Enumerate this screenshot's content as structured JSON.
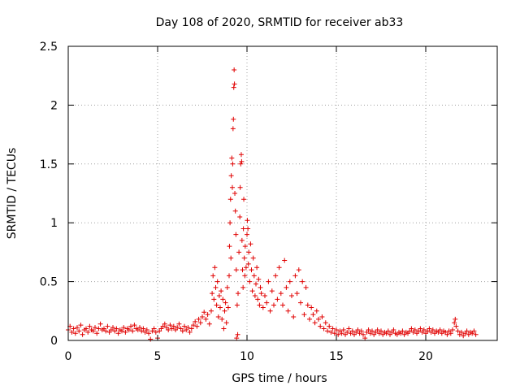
{
  "chart_data": {
    "type": "scatter",
    "title": "Day 108 of 2020, SRMTID for receiver ab33",
    "xlabel": "GPS time / hours",
    "ylabel": "SRMTID / TECUs",
    "xlim": [
      0,
      24
    ],
    "ylim": [
      0,
      2.5
    ],
    "xticks": [
      0,
      5,
      10,
      15,
      20
    ],
    "xtick_labels": [
      "0",
      "5",
      "10",
      "15",
      "20"
    ],
    "yticks": [
      0,
      0.5,
      1,
      1.5,
      2,
      2.5
    ],
    "ytick_labels": [
      "0",
      "0.5",
      "1",
      "1.5",
      "2",
      "2.5"
    ],
    "grid": true,
    "marker": "+",
    "color": "#e00000",
    "series": [
      {
        "name": "SRMTID",
        "points": [
          [
            0.0,
            0.09
          ],
          [
            0.1,
            0.12
          ],
          [
            0.2,
            0.07
          ],
          [
            0.3,
            0.1
          ],
          [
            0.4,
            0.06
          ],
          [
            0.5,
            0.11
          ],
          [
            0.6,
            0.08
          ],
          [
            0.7,
            0.13
          ],
          [
            0.8,
            0.05
          ],
          [
            0.9,
            0.09
          ],
          [
            1.0,
            0.1
          ],
          [
            1.1,
            0.07
          ],
          [
            1.2,
            0.12
          ],
          [
            1.3,
            0.09
          ],
          [
            1.4,
            0.08
          ],
          [
            1.5,
            0.11
          ],
          [
            1.6,
            0.06
          ],
          [
            1.7,
            0.1
          ],
          [
            1.8,
            0.14
          ],
          [
            1.9,
            0.09
          ],
          [
            2.0,
            0.1
          ],
          [
            2.1,
            0.08
          ],
          [
            2.2,
            0.12
          ],
          [
            2.3,
            0.07
          ],
          [
            2.4,
            0.09
          ],
          [
            2.5,
            0.11
          ],
          [
            2.6,
            0.08
          ],
          [
            2.7,
            0.1
          ],
          [
            2.8,
            0.06
          ],
          [
            2.9,
            0.09
          ],
          [
            3.0,
            0.08
          ],
          [
            3.1,
            0.11
          ],
          [
            3.2,
            0.07
          ],
          [
            3.3,
            0.1
          ],
          [
            3.4,
            0.09
          ],
          [
            3.5,
            0.12
          ],
          [
            3.6,
            0.08
          ],
          [
            3.7,
            0.13
          ],
          [
            3.8,
            0.1
          ],
          [
            3.9,
            0.09
          ],
          [
            4.0,
            0.11
          ],
          [
            4.1,
            0.08
          ],
          [
            4.2,
            0.1
          ],
          [
            4.3,
            0.07
          ],
          [
            4.4,
            0.09
          ],
          [
            4.5,
            0.06
          ],
          [
            4.6,
            0.01
          ],
          [
            4.7,
            0.08
          ],
          [
            4.8,
            0.1
          ],
          [
            4.9,
            0.07
          ],
          [
            5.0,
            0.02
          ],
          [
            5.1,
            0.08
          ],
          [
            5.2,
            0.1
          ],
          [
            5.3,
            0.12
          ],
          [
            5.4,
            0.14
          ],
          [
            5.5,
            0.11
          ],
          [
            5.6,
            0.09
          ],
          [
            5.7,
            0.13
          ],
          [
            5.8,
            0.1
          ],
          [
            5.9,
            0.12
          ],
          [
            6.0,
            0.09
          ],
          [
            6.1,
            0.11
          ],
          [
            6.2,
            0.14
          ],
          [
            6.3,
            0.1
          ],
          [
            6.4,
            0.08
          ],
          [
            6.5,
            0.12
          ],
          [
            6.6,
            0.09
          ],
          [
            6.7,
            0.11
          ],
          [
            6.8,
            0.07
          ],
          [
            6.9,
            0.1
          ],
          [
            7.0,
            0.13
          ],
          [
            7.1,
            0.16
          ],
          [
            7.2,
            0.12
          ],
          [
            7.3,
            0.18
          ],
          [
            7.4,
            0.15
          ],
          [
            7.5,
            0.2
          ],
          [
            7.6,
            0.24
          ],
          [
            7.7,
            0.18
          ],
          [
            7.8,
            0.22
          ],
          [
            7.9,
            0.14
          ],
          [
            8.0,
            0.25
          ],
          [
            8.05,
            0.4
          ],
          [
            8.1,
            0.55
          ],
          [
            8.15,
            0.35
          ],
          [
            8.2,
            0.62
          ],
          [
            8.25,
            0.45
          ],
          [
            8.3,
            0.3
          ],
          [
            8.35,
            0.5
          ],
          [
            8.4,
            0.2
          ],
          [
            8.45,
            0.38
          ],
          [
            8.5,
            0.28
          ],
          [
            8.55,
            0.42
          ],
          [
            8.6,
            0.18
          ],
          [
            8.65,
            0.35
          ],
          [
            8.7,
            0.1
          ],
          [
            8.75,
            0.25
          ],
          [
            8.8,
            0.32
          ],
          [
            8.85,
            0.15
          ],
          [
            8.9,
            0.45
          ],
          [
            8.95,
            0.28
          ],
          [
            9.0,
            0.55
          ],
          [
            9.02,
            0.8
          ],
          [
            9.05,
            1.0
          ],
          [
            9.08,
            1.2
          ],
          [
            9.1,
            0.7
          ],
          [
            9.12,
            1.4
          ],
          [
            9.15,
            1.55
          ],
          [
            9.18,
            1.3
          ],
          [
            9.2,
            1.5
          ],
          [
            9.22,
            1.8
          ],
          [
            9.24,
            1.88
          ],
          [
            9.26,
            2.15
          ],
          [
            9.28,
            2.3
          ],
          [
            9.3,
            2.18
          ],
          [
            9.32,
            1.25
          ],
          [
            9.35,
            1.1
          ],
          [
            9.38,
            0.9
          ],
          [
            9.4,
            0.6
          ],
          [
            9.42,
            0.02
          ],
          [
            9.45,
            0.3
          ],
          [
            9.48,
            0.05
          ],
          [
            9.5,
            0.4
          ],
          [
            9.55,
            0.75
          ],
          [
            9.6,
            1.05
          ],
          [
            9.62,
            1.3
          ],
          [
            9.65,
            1.5
          ],
          [
            9.68,
            1.58
          ],
          [
            9.7,
            1.52
          ],
          [
            9.72,
            0.85
          ],
          [
            9.75,
            0.6
          ],
          [
            9.78,
            0.45
          ],
          [
            9.8,
            0.95
          ],
          [
            9.82,
            1.2
          ],
          [
            9.85,
            0.7
          ],
          [
            9.88,
            0.55
          ],
          [
            9.9,
            0.8
          ],
          [
            9.95,
            0.62
          ],
          [
            10.0,
            0.9
          ],
          [
            10.02,
            1.02
          ],
          [
            10.05,
            0.95
          ],
          [
            10.08,
            0.65
          ],
          [
            10.1,
            0.75
          ],
          [
            10.15,
            0.5
          ],
          [
            10.2,
            0.82
          ],
          [
            10.25,
            0.6
          ],
          [
            10.3,
            0.42
          ],
          [
            10.35,
            0.7
          ],
          [
            10.4,
            0.55
          ],
          [
            10.45,
            0.38
          ],
          [
            10.5,
            0.48
          ],
          [
            10.55,
            0.62
          ],
          [
            10.6,
            0.35
          ],
          [
            10.65,
            0.52
          ],
          [
            10.7,
            0.3
          ],
          [
            10.75,
            0.45
          ],
          [
            10.8,
            0.4
          ],
          [
            10.9,
            0.28
          ],
          [
            11.0,
            0.38
          ],
          [
            11.1,
            0.32
          ],
          [
            11.2,
            0.5
          ],
          [
            11.3,
            0.25
          ],
          [
            11.4,
            0.42
          ],
          [
            11.5,
            0.3
          ],
          [
            11.6,
            0.55
          ],
          [
            11.7,
            0.35
          ],
          [
            11.8,
            0.62
          ],
          [
            11.9,
            0.4
          ],
          [
            12.0,
            0.3
          ],
          [
            12.1,
            0.68
          ],
          [
            12.2,
            0.45
          ],
          [
            12.3,
            0.25
          ],
          [
            12.4,
            0.5
          ],
          [
            12.5,
            0.38
          ],
          [
            12.6,
            0.2
          ],
          [
            12.7,
            0.55
          ],
          [
            12.8,
            0.4
          ],
          [
            12.9,
            0.6
          ],
          [
            13.0,
            0.32
          ],
          [
            13.1,
            0.5
          ],
          [
            13.2,
            0.22
          ],
          [
            13.3,
            0.45
          ],
          [
            13.4,
            0.3
          ],
          [
            13.5,
            0.18
          ],
          [
            13.6,
            0.28
          ],
          [
            13.7,
            0.22
          ],
          [
            13.8,
            0.15
          ],
          [
            13.9,
            0.25
          ],
          [
            14.0,
            0.18
          ],
          [
            14.1,
            0.12
          ],
          [
            14.2,
            0.2
          ],
          [
            14.3,
            0.1
          ],
          [
            14.4,
            0.15
          ],
          [
            14.5,
            0.08
          ],
          [
            14.6,
            0.12
          ],
          [
            14.7,
            0.07
          ],
          [
            14.8,
            0.1
          ],
          [
            14.9,
            0.06
          ],
          [
            15.0,
            0.09
          ],
          [
            15.1,
            0.05
          ],
          [
            15.2,
            0.08
          ],
          [
            15.3,
            0.06
          ],
          [
            15.4,
            0.09
          ],
          [
            15.5,
            0.05
          ],
          [
            15.6,
            0.07
          ],
          [
            15.7,
            0.1
          ],
          [
            15.8,
            0.06
          ],
          [
            15.9,
            0.08
          ],
          [
            16.0,
            0.05
          ],
          [
            16.1,
            0.07
          ],
          [
            16.2,
            0.09
          ],
          [
            16.3,
            0.06
          ],
          [
            16.4,
            0.08
          ],
          [
            16.5,
            0.05
          ],
          [
            16.6,
            0.02
          ],
          [
            16.7,
            0.07
          ],
          [
            16.8,
            0.09
          ],
          [
            16.9,
            0.06
          ],
          [
            17.0,
            0.08
          ],
          [
            17.1,
            0.05
          ],
          [
            17.2,
            0.07
          ],
          [
            17.3,
            0.09
          ],
          [
            17.4,
            0.06
          ],
          [
            17.5,
            0.08
          ],
          [
            17.6,
            0.05
          ],
          [
            17.7,
            0.07
          ],
          [
            17.8,
            0.06
          ],
          [
            17.9,
            0.08
          ],
          [
            18.0,
            0.05
          ],
          [
            18.1,
            0.07
          ],
          [
            18.2,
            0.09
          ],
          [
            18.3,
            0.06
          ],
          [
            18.4,
            0.05
          ],
          [
            18.5,
            0.07
          ],
          [
            18.6,
            0.06
          ],
          [
            18.7,
            0.08
          ],
          [
            18.8,
            0.05
          ],
          [
            18.9,
            0.07
          ],
          [
            19.0,
            0.06
          ],
          [
            19.1,
            0.08
          ],
          [
            19.2,
            0.1
          ],
          [
            19.3,
            0.07
          ],
          [
            19.4,
            0.09
          ],
          [
            19.5,
            0.06
          ],
          [
            19.6,
            0.08
          ],
          [
            19.7,
            0.1
          ],
          [
            19.8,
            0.07
          ],
          [
            19.9,
            0.09
          ],
          [
            20.0,
            0.06
          ],
          [
            20.1,
            0.08
          ],
          [
            20.2,
            0.1
          ],
          [
            20.3,
            0.07
          ],
          [
            20.4,
            0.09
          ],
          [
            20.5,
            0.06
          ],
          [
            20.6,
            0.08
          ],
          [
            20.7,
            0.07
          ],
          [
            20.8,
            0.09
          ],
          [
            20.9,
            0.06
          ],
          [
            21.0,
            0.08
          ],
          [
            21.1,
            0.07
          ],
          [
            21.2,
            0.05
          ],
          [
            21.3,
            0.08
          ],
          [
            21.4,
            0.06
          ],
          [
            21.5,
            0.09
          ],
          [
            21.6,
            0.15
          ],
          [
            21.65,
            0.18
          ],
          [
            21.7,
            0.12
          ],
          [
            21.8,
            0.08
          ],
          [
            21.9,
            0.05
          ],
          [
            22.0,
            0.07
          ],
          [
            22.1,
            0.04
          ],
          [
            22.2,
            0.06
          ],
          [
            22.3,
            0.08
          ],
          [
            22.4,
            0.05
          ],
          [
            22.5,
            0.07
          ],
          [
            22.6,
            0.06
          ],
          [
            22.7,
            0.08
          ],
          [
            22.8,
            0.05
          ]
        ]
      }
    ]
  }
}
